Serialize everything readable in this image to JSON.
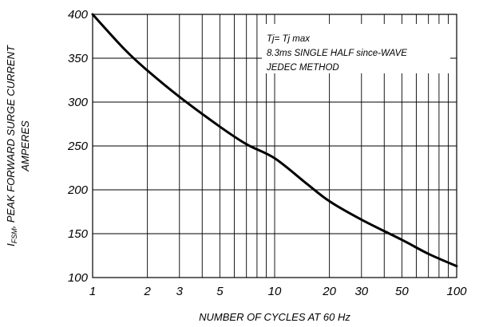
{
  "chart_data": {
    "type": "line",
    "title": "",
    "xlabel": "NUMBER OF CYCLES AT 60 Hz",
    "ylabel_line1": "I",
    "ylabel_sub": "FSM",
    "ylabel_line1_rest": ",  PEAK FORWARD SURGE CURRENT",
    "ylabel_line2": "AMPERES",
    "x_scale": "log",
    "xlim": [
      1,
      100
    ],
    "ylim": [
      100,
      400
    ],
    "grid": true,
    "x_ticks": [
      1,
      2,
      3,
      5,
      10,
      20,
      30,
      50,
      100
    ],
    "x_tick_labels": [
      "1",
      "2",
      "3",
      "5",
      "10",
      "20",
      "30",
      "50",
      "100"
    ],
    "x_minor_grid": [
      4,
      6,
      7,
      8,
      9,
      40,
      60,
      70,
      80,
      90
    ],
    "y_ticks": [
      100,
      150,
      200,
      250,
      300,
      350,
      400
    ],
    "y_tick_labels": [
      "100",
      "150",
      "200",
      "250",
      "300",
      "350",
      "400"
    ],
    "annotations": [
      "Tj= Tj max",
      "8.3ms SINGLE HALF since-WAVE",
      "JEDEC METHOD"
    ],
    "series": [
      {
        "x": [
          1,
          1.5,
          2,
          3,
          5,
          7,
          10,
          15,
          20,
          30,
          50,
          70,
          100
        ],
        "y": [
          400,
          360,
          336,
          306,
          272,
          252,
          236,
          207,
          187,
          166,
          143,
          127,
          113
        ]
      }
    ]
  }
}
